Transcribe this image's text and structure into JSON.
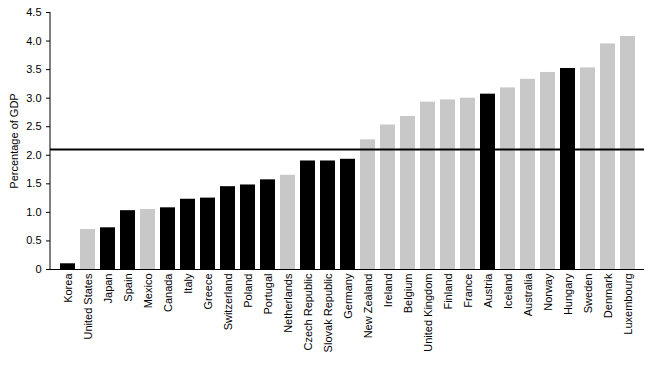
{
  "chart_data": {
    "type": "bar",
    "y_label": "Percentage of GDP",
    "categories": [
      "Korea",
      "United States",
      "Japan",
      "Spain",
      "Mexico",
      "Canada",
      "Italy",
      "Greece",
      "Switzerland",
      "Poland",
      "Portugal",
      "Netherlands",
      "Czech Republic",
      "Slovak Republic",
      "Germany",
      "New Zealand",
      "Ireland",
      "Belgium",
      "United Kingdom",
      "Finland",
      "France",
      "Austria",
      "Iceland",
      "Australia",
      "Norway",
      "Hungary",
      "Sweden",
      "Denmark",
      "Luxembourg"
    ],
    "values": [
      0.1,
      0.7,
      0.73,
      1.03,
      1.05,
      1.08,
      1.23,
      1.25,
      1.45,
      1.48,
      1.57,
      1.65,
      1.9,
      1.9,
      1.93,
      2.27,
      2.53,
      2.68,
      2.93,
      2.97,
      3.0,
      3.07,
      3.18,
      3.33,
      3.45,
      3.52,
      3.53,
      3.95,
      4.08
    ],
    "colors": [
      "#000000",
      "#c8c8c8",
      "#000000",
      "#000000",
      "#c8c8c8",
      "#000000",
      "#000000",
      "#000000",
      "#000000",
      "#000000",
      "#000000",
      "#c8c8c8",
      "#000000",
      "#000000",
      "#000000",
      "#c8c8c8",
      "#c8c8c8",
      "#c8c8c8",
      "#c8c8c8",
      "#c8c8c8",
      "#c8c8c8",
      "#000000",
      "#c8c8c8",
      "#c8c8c8",
      "#c8c8c8",
      "#000000",
      "#c8c8c8",
      "#c8c8c8",
      "#c8c8c8"
    ],
    "reference_line": 2.1,
    "ylim": [
      0,
      4.5
    ],
    "yticks": [
      0,
      0.5,
      {
        "value": 1,
        "label": "1.0"
      },
      1.5,
      {
        "value": 2,
        "label": "2.0"
      },
      2.5,
      {
        "value": 3,
        "label": "3.0"
      },
      3.5,
      {
        "value": 4,
        "label": "4.0"
      },
      4.5
    ],
    "grid": false
  }
}
